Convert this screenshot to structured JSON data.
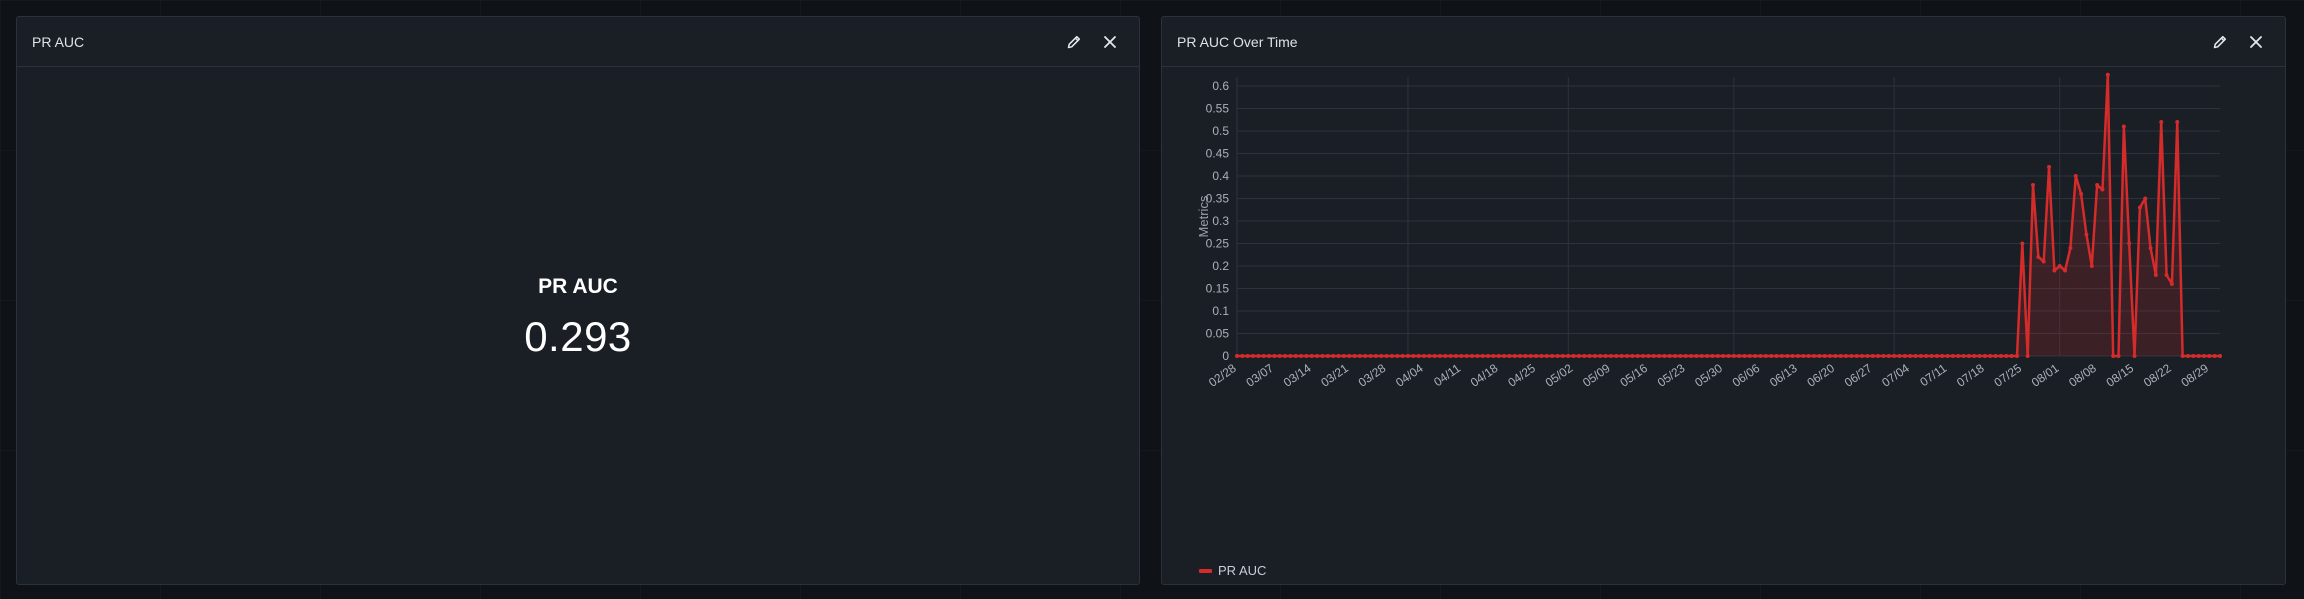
{
  "left_panel": {
    "title": "PR AUC",
    "stat_label": "PR AUC",
    "stat_value": "0.293",
    "edit_icon": "pencil-icon",
    "close_icon": "close-icon"
  },
  "right_panel": {
    "title": "PR AUC Over Time",
    "edit_icon": "pencil-icon",
    "close_icon": "close-icon"
  },
  "chart_data": {
    "type": "area",
    "ylabel": "Metrics",
    "xlabel": "",
    "ylim": [
      0,
      0.62
    ],
    "yticks": [
      0,
      0.05,
      0.1,
      0.15,
      0.2,
      0.25,
      0.3,
      0.35,
      0.4,
      0.45,
      0.5,
      0.55,
      0.6
    ],
    "x_range": [
      "02/28",
      "08/31"
    ],
    "xticks": [
      "02/28",
      "03/07",
      "03/14",
      "03/21",
      "03/28",
      "04/04",
      "04/11",
      "04/18",
      "04/25",
      "05/02",
      "05/09",
      "05/16",
      "05/23",
      "05/30",
      "06/06",
      "06/13",
      "06/20",
      "06/27",
      "07/04",
      "07/11",
      "07/18",
      "07/25",
      "08/01",
      "08/08",
      "08/15",
      "08/22",
      "08/29"
    ],
    "grid": true,
    "legend_position": "bottom-left",
    "color": "#d42b2b",
    "series": [
      {
        "name": "PR AUC",
        "points": [
          [
            "07/24",
            0
          ],
          [
            "07/25",
            0.25
          ],
          [
            "07/26",
            0
          ],
          [
            "07/27",
            0.38
          ],
          [
            "07/28",
            0.22
          ],
          [
            "07/29",
            0.21
          ],
          [
            "07/30",
            0.42
          ],
          [
            "07/31",
            0.19
          ],
          [
            "08/01",
            0.2
          ],
          [
            "08/02",
            0.19
          ],
          [
            "08/03",
            0.24
          ],
          [
            "08/04",
            0.4
          ],
          [
            "08/05",
            0.36
          ],
          [
            "08/06",
            0.27
          ],
          [
            "08/07",
            0.2
          ],
          [
            "08/08",
            0.38
          ],
          [
            "08/09",
            0.37
          ],
          [
            "08/10",
            0.625
          ],
          [
            "08/11",
            0
          ],
          [
            "08/12",
            0
          ],
          [
            "08/13",
            0.51
          ],
          [
            "08/14",
            0.25
          ],
          [
            "08/15",
            0
          ],
          [
            "08/16",
            0.33
          ],
          [
            "08/17",
            0.35
          ],
          [
            "08/18",
            0.24
          ],
          [
            "08/19",
            0.18
          ],
          [
            "08/20",
            0.52
          ],
          [
            "08/21",
            0.18
          ],
          [
            "08/22",
            0.16
          ],
          [
            "08/23",
            0.52
          ],
          [
            "08/24",
            0
          ]
        ]
      }
    ]
  },
  "legend": {
    "label": "PR AUC"
  }
}
